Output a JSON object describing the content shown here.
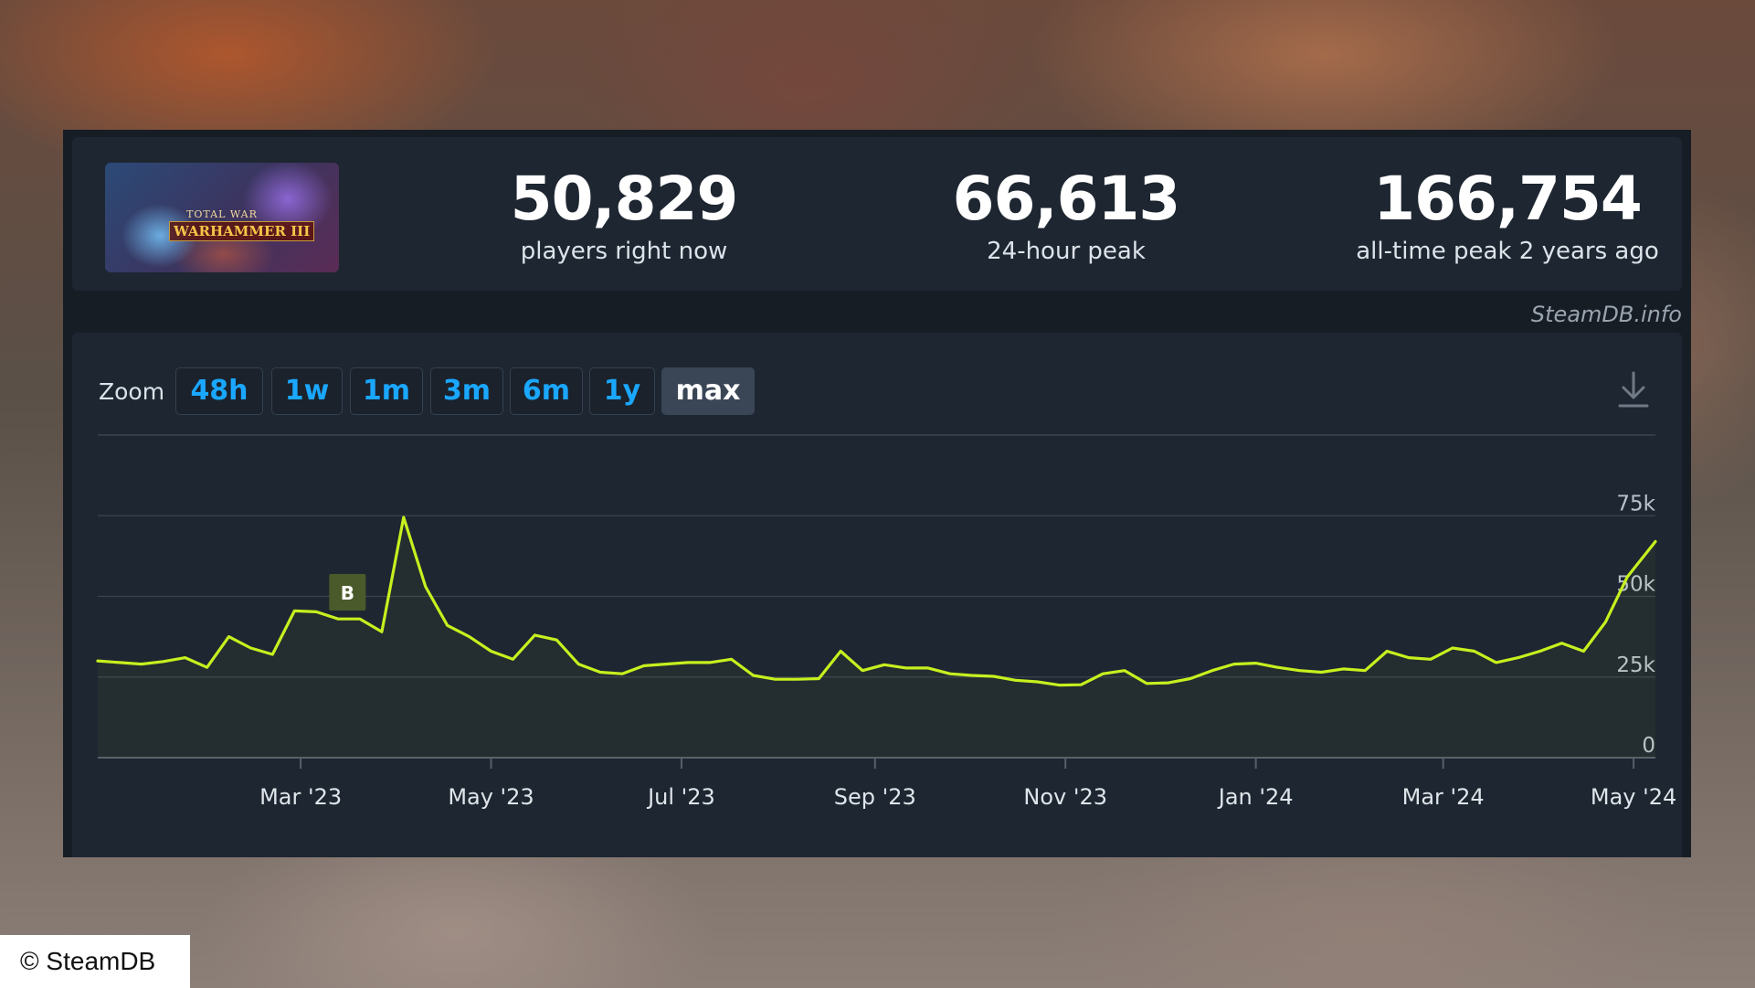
{
  "stats": {
    "current": {
      "value": "50,829",
      "label": "players right now"
    },
    "peak24": {
      "value": "66,613",
      "label": "24-hour peak"
    },
    "alltime": {
      "value": "166,754",
      "label": "all-time peak 2 years ago"
    }
  },
  "game_image": {
    "logo_top": "TOTAL WAR",
    "logo_main": "WARHAMMER",
    "logo_numeral": "III"
  },
  "brand": "SteamDB.info",
  "zoom": {
    "label": "Zoom",
    "buttons": [
      {
        "label": "48h",
        "active": false
      },
      {
        "label": "1w",
        "active": false
      },
      {
        "label": "1m",
        "active": false
      },
      {
        "label": "3m",
        "active": false
      },
      {
        "label": "6m",
        "active": false
      },
      {
        "label": "1y",
        "active": false
      },
      {
        "label": "max",
        "active": true
      }
    ]
  },
  "download_icon": "download-icon",
  "credit": "© SteamDB",
  "colors": {
    "line": "#c7f01e",
    "accent": "#1aa7ff",
    "grid": "#3a4450",
    "marker_bg": "#4a5a2a"
  },
  "chart_data": {
    "type": "line",
    "title": "",
    "xlabel": "",
    "ylabel": "",
    "x_ticks": [
      {
        "date": "2023-03-01",
        "label": "Mar '23"
      },
      {
        "date": "2023-05-01",
        "label": "May '23"
      },
      {
        "date": "2023-07-01",
        "label": "Jul '23"
      },
      {
        "date": "2023-09-01",
        "label": "Sep '23"
      },
      {
        "date": "2023-11-01",
        "label": "Nov '23"
      },
      {
        "date": "2024-01-01",
        "label": "Jan '24"
      },
      {
        "date": "2024-03-01",
        "label": "Mar '24"
      },
      {
        "date": "2024-05-01",
        "label": "May '24"
      }
    ],
    "y_ticks": [
      {
        "value": 0,
        "label": "0"
      },
      {
        "value": 25000,
        "label": "25k"
      },
      {
        "value": 50000,
        "label": "50k"
      },
      {
        "value": 75000,
        "label": "75k"
      }
    ],
    "ylim": [
      0,
      100000
    ],
    "xlim": [
      "2022-12-26",
      "2024-05-08"
    ],
    "grid": true,
    "annotation": {
      "label": "B",
      "date": "2023-03-16"
    },
    "series": [
      {
        "x": [
          "2022-12-26",
          "2023-01-02",
          "2023-01-09",
          "2023-01-16",
          "2023-01-23",
          "2023-01-30",
          "2023-02-06",
          "2023-02-13",
          "2023-02-20",
          "2023-02-27",
          "2023-03-06",
          "2023-03-13",
          "2023-03-20",
          "2023-03-27",
          "2023-04-03",
          "2023-04-10",
          "2023-04-17",
          "2023-04-24",
          "2023-05-01",
          "2023-05-08",
          "2023-05-15",
          "2023-05-22",
          "2023-05-29",
          "2023-06-05",
          "2023-06-12",
          "2023-06-19",
          "2023-06-26",
          "2023-07-03",
          "2023-07-10",
          "2023-07-17",
          "2023-07-24",
          "2023-07-31",
          "2023-08-07",
          "2023-08-14",
          "2023-08-21",
          "2023-08-28",
          "2023-09-04",
          "2023-09-11",
          "2023-09-18",
          "2023-09-25",
          "2023-10-02",
          "2023-10-09",
          "2023-10-16",
          "2023-10-23",
          "2023-10-30",
          "2023-11-06",
          "2023-11-13",
          "2023-11-20",
          "2023-11-27",
          "2023-12-04",
          "2023-12-11",
          "2023-12-18",
          "2023-12-25",
          "2024-01-01",
          "2024-01-08",
          "2024-01-15",
          "2024-01-22",
          "2024-01-29",
          "2024-02-05",
          "2024-02-12",
          "2024-02-19",
          "2024-02-26",
          "2024-03-04",
          "2024-03-11",
          "2024-03-18",
          "2024-03-25",
          "2024-04-01",
          "2024-04-08",
          "2024-04-15",
          "2024-04-22",
          "2024-04-29",
          "2024-05-08"
        ],
        "values": [
          30000,
          29500,
          29000,
          29800,
          31000,
          28000,
          37500,
          34000,
          32000,
          45500,
          45200,
          43000,
          43000,
          39000,
          74500,
          53000,
          41000,
          37500,
          33000,
          30500,
          38000,
          36500,
          29000,
          26500,
          26000,
          28500,
          29000,
          29500,
          29500,
          30500,
          25500,
          24300,
          24300,
          24500,
          33000,
          27000,
          28800,
          27800,
          27800,
          26000,
          25500,
          25200,
          24000,
          23500,
          22500,
          22600,
          26000,
          27000,
          23000,
          23200,
          24500,
          27000,
          29000,
          29300,
          28000,
          27000,
          26500,
          27500,
          27000,
          33000,
          31000,
          30500,
          34000,
          33000,
          29500,
          31000,
          33000,
          35500,
          33000,
          42000,
          56000,
          67000
        ]
      }
    ]
  }
}
